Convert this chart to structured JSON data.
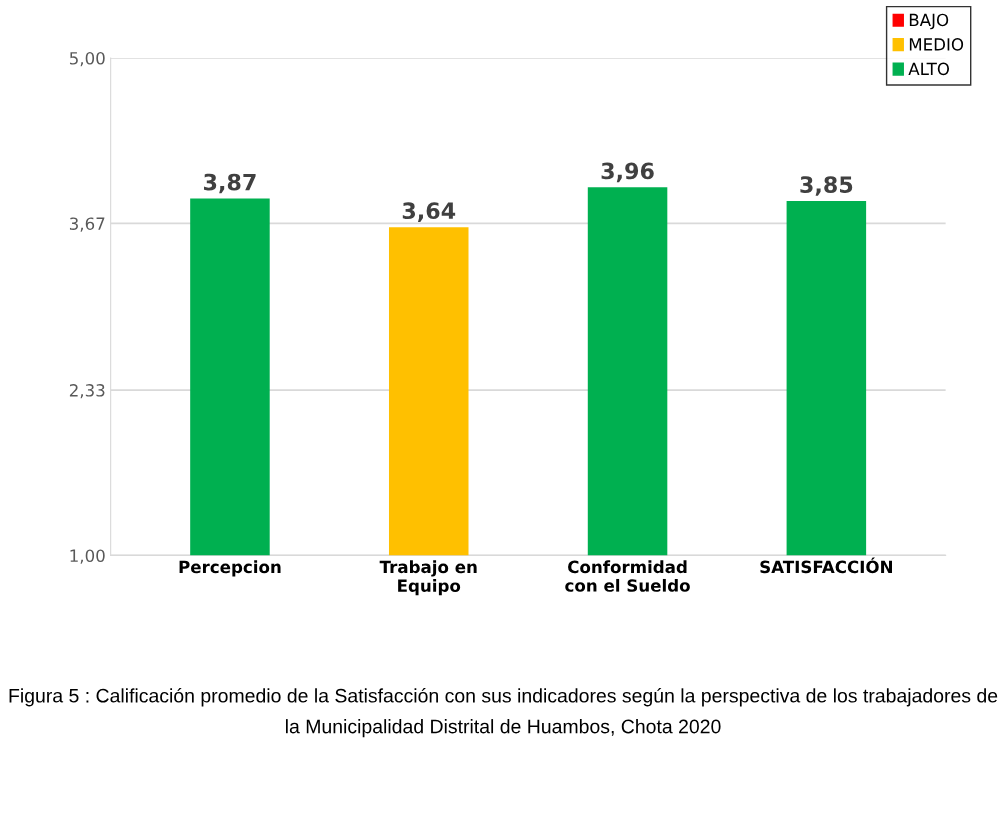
{
  "chart_data": {
    "type": "bar",
    "stacked": true,
    "categories": [
      "Percepcion",
      "Trabajo en\nEquipo",
      "Conformidad\ncon el Sueldo",
      "SATISFACCIÓN"
    ],
    "series": [
      {
        "name": "BAJO",
        "color": "#ff0000",
        "values": [
          null,
          null,
          null,
          null
        ]
      },
      {
        "name": "MEDIO",
        "color": "#ffc000",
        "values": [
          null,
          3.64,
          null,
          null
        ],
        "value_labels": [
          null,
          "3,64",
          null,
          null
        ]
      },
      {
        "name": "ALTO",
        "color": "#00b050",
        "values": [
          3.87,
          null,
          3.96,
          3.85
        ],
        "value_labels": [
          "3,87",
          null,
          "3,96",
          "3,85"
        ]
      }
    ],
    "ylim": [
      1,
      5
    ],
    "yticks": [
      {
        "value": 1,
        "label": "1,00"
      },
      {
        "value": 2.33,
        "label": "2,33"
      },
      {
        "value": 3.67,
        "label": "3,67"
      },
      {
        "value": 5,
        "label": "5,00"
      }
    ],
    "grid": "y",
    "legend": "top right",
    "annotations": [
      "Figura 5 : Calificación promedio de la Satisfacción con sus indicadores según la perspectiva de los trabajadores de la Municipalidad Distrital de Huambos, Chota 2020"
    ]
  }
}
